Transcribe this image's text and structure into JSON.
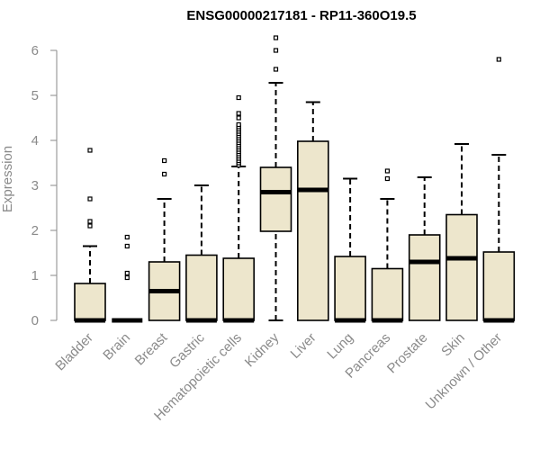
{
  "chart_data": {
    "type": "boxplot",
    "title": "ENSG00000217181 - RP11-360O19.5",
    "ylabel": "Expression",
    "xlabel": "",
    "ylim": [
      0,
      6.3
    ],
    "yticks": [
      "0",
      "1",
      "2",
      "3",
      "4",
      "5",
      "6"
    ],
    "grid": false,
    "colors": {
      "box_fill": "#ede6cc",
      "box_stroke": "#000000",
      "axis": "#8a8a8a",
      "median": "#000000"
    },
    "categories": [
      "Bladder",
      "Brain",
      "Breast",
      "Gastric",
      "Hematopoietic cells",
      "Kidney",
      "Liver",
      "Lung",
      "Pancreas",
      "Prostate",
      "Skin",
      "Unknown / Other"
    ],
    "boxes": [
      {
        "min": 0,
        "q1": 0,
        "median": 0,
        "q3": 0.82,
        "max": 1.65,
        "outliers": [
          2.1,
          2.2,
          2.7,
          3.78
        ]
      },
      {
        "min": 0,
        "q1": 0,
        "median": 0,
        "q3": 0,
        "max": 0,
        "outliers": [
          0.95,
          1.05,
          1.65,
          1.85
        ]
      },
      {
        "min": 0,
        "q1": 0,
        "median": 0.65,
        "q3": 1.3,
        "max": 2.7,
        "outliers": [
          3.25,
          3.55
        ]
      },
      {
        "min": 0,
        "q1": 0,
        "median": 0,
        "q3": 1.45,
        "max": 3.0,
        "outliers": []
      },
      {
        "min": 0,
        "q1": 0,
        "median": 0,
        "q3": 1.38,
        "max": 3.42,
        "outliers": [
          3.45,
          3.5,
          3.55,
          3.6,
          3.65,
          3.7,
          3.75,
          3.8,
          3.85,
          3.9,
          3.95,
          4.0,
          4.05,
          4.1,
          4.15,
          4.2,
          4.25,
          4.3,
          4.35,
          4.5,
          4.6,
          4.95
        ]
      },
      {
        "min": 0,
        "q1": 1.98,
        "median": 2.85,
        "q3": 3.4,
        "max": 5.28,
        "outliers": [
          5.58,
          6.0,
          6.28
        ]
      },
      {
        "min": 0,
        "q1": 0,
        "median": 2.9,
        "q3": 3.98,
        "max": 4.85,
        "outliers": []
      },
      {
        "min": 0,
        "q1": 0,
        "median": 0,
        "q3": 1.42,
        "max": 3.15,
        "outliers": []
      },
      {
        "min": 0,
        "q1": 0,
        "median": 0,
        "q3": 1.15,
        "max": 2.7,
        "outliers": [
          3.15,
          3.32
        ]
      },
      {
        "min": 0,
        "q1": 0,
        "median": 1.3,
        "q3": 1.9,
        "max": 3.18,
        "outliers": []
      },
      {
        "min": 0,
        "q1": 0,
        "median": 1.38,
        "q3": 2.35,
        "max": 3.92,
        "outliers": []
      },
      {
        "min": 0,
        "q1": 0,
        "median": 0,
        "q3": 1.52,
        "max": 3.68,
        "outliers": [
          5.8
        ]
      }
    ]
  }
}
